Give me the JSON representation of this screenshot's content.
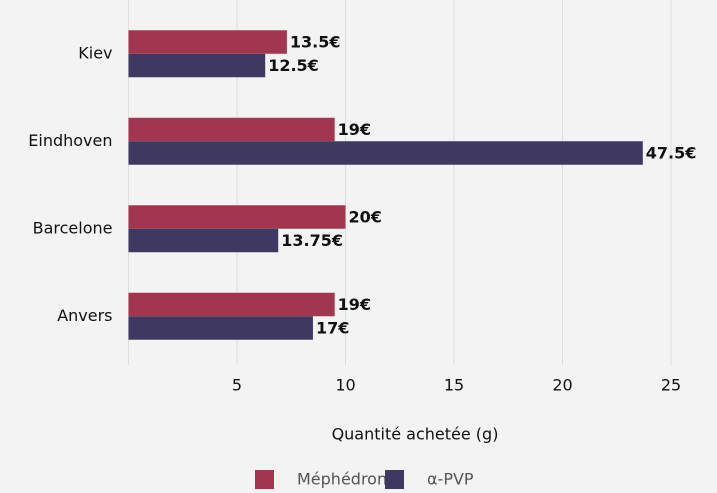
{
  "chart_data": {
    "type": "bar",
    "orientation": "horizontal",
    "x_label": "Quantité achetée (g)",
    "categories": [
      "Kiev",
      "Eindhoven",
      "Barcelone",
      "Anvers"
    ],
    "series": [
      {
        "name": "Méphédrone",
        "color": "#a3364f",
        "values": [
          7.3,
          9.5,
          10,
          9.5
        ],
        "price_labels": [
          "13.5€",
          "19€",
          "20€",
          "19€"
        ]
      },
      {
        "name": "α-PVP",
        "color": "#3f3962",
        "values": [
          6.3,
          23.7,
          6.9,
          8.5
        ],
        "price_labels": [
          "12.5€",
          "47.5€",
          "13.75€",
          "17€"
        ]
      }
    ],
    "xlim": [
      0,
      27
    ],
    "xticks": [
      5,
      10,
      15,
      20,
      25
    ],
    "grid": true,
    "legend": "bottom"
  }
}
